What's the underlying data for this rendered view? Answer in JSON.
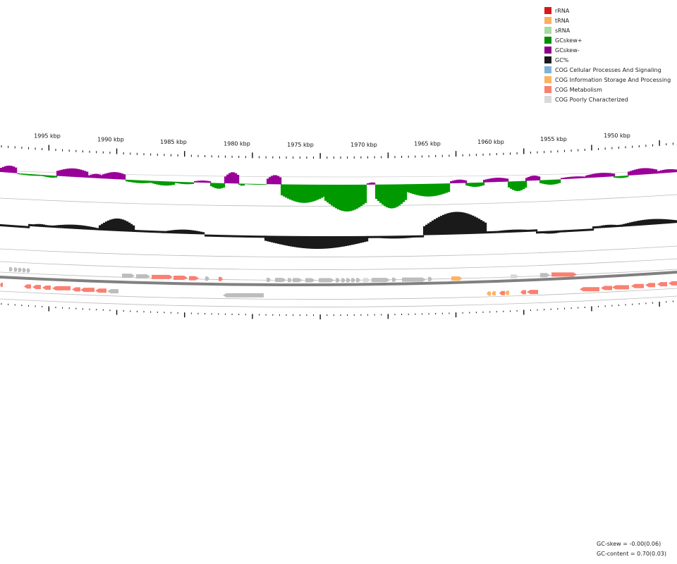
{
  "legend": {
    "items": [
      {
        "label": "rRNA",
        "color": "#d7191c"
      },
      {
        "label": "tRNA",
        "color": "#fdae61"
      },
      {
        "label": "sRNA",
        "color": "#a6dba0"
      },
      {
        "label": "GCskew+",
        "color": "#008f00"
      },
      {
        "label": "GCskew-",
        "color": "#8b008b"
      },
      {
        "label": "GC%",
        "color": "#1a1a1a"
      },
      {
        "label": "COG Cellular Processes And Signaling",
        "color": "#7fb3d5"
      },
      {
        "label": "COG Information Storage And Processing",
        "color": "#fdb462"
      },
      {
        "label": "COG Metabolism",
        "color": "#fa8072"
      },
      {
        "label": "COG Poorly Characterized",
        "color": "#d9d9d9"
      }
    ]
  },
  "axis": {
    "tick_labels": [
      "1995 kbp",
      "1990 kbp",
      "1985 kbp",
      "1980 kbp",
      "1975 kbp",
      "1970 kbp",
      "1965 kbp",
      "1960 kbp",
      "1955 kbp",
      "1950 kbp"
    ]
  },
  "stats": {
    "gc_skew": "GC-skew = -0.00(0.06)",
    "gc_content": "GC-content = 0.70(0.03)"
  },
  "colors": {
    "gc_skew_positive": "#009a00",
    "gc_skew_negative": "#990099",
    "gc_content": "#1a1a1a",
    "backbone": "#808080",
    "cog_metabolism": "#fa8072",
    "cog_poorly_characterized": "#bdbdbd",
    "cog_information": "#fdb462"
  },
  "chart_data": {
    "type": "circular_genome_map",
    "tracks": [
      "GC-skew",
      "GC-content",
      "Forward CDS",
      "Reverse CDS"
    ],
    "visible_range_kbp": [
      1948,
      1998
    ]
  }
}
